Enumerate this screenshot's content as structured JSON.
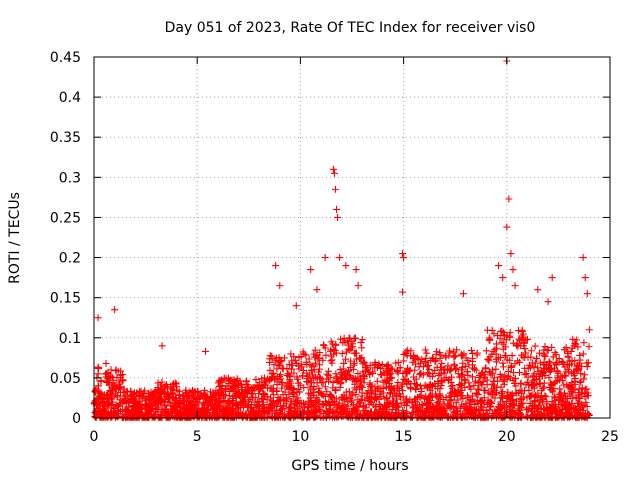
{
  "chart_data": {
    "type": "scatter",
    "title": "Day 051 of 2023, Rate Of TEC Index for receiver vis0",
    "xlabel": "GPS time / hours",
    "ylabel": "ROTI / TECUs",
    "xlim": [
      0,
      25
    ],
    "ylim": [
      0,
      0.45
    ],
    "xticks": [
      0,
      5,
      10,
      15,
      20,
      25
    ],
    "yticks": [
      0,
      0.05,
      0.1,
      0.15,
      0.2,
      0.25,
      0.3,
      0.35,
      0.4,
      0.45
    ],
    "xtick_labels": [
      "0",
      "5",
      "10",
      "15",
      "20",
      "25"
    ],
    "ytick_labels": [
      "0",
      "0.05",
      "0.1",
      "0.15",
      "0.2",
      "0.25",
      "0.3",
      "0.35",
      "0.4",
      "0.45"
    ],
    "grid": true,
    "marker": "+",
    "color": "#ff0000",
    "x_extent_of_data": [
      0,
      24
    ],
    "notable_points": [
      {
        "x": 0.2,
        "y": 0.125
      },
      {
        "x": 1.0,
        "y": 0.135
      },
      {
        "x": 3.3,
        "y": 0.09
      },
      {
        "x": 5.4,
        "y": 0.083
      },
      {
        "x": 8.8,
        "y": 0.19
      },
      {
        "x": 9.0,
        "y": 0.165
      },
      {
        "x": 9.8,
        "y": 0.14
      },
      {
        "x": 10.5,
        "y": 0.185
      },
      {
        "x": 10.8,
        "y": 0.16
      },
      {
        "x": 11.2,
        "y": 0.2
      },
      {
        "x": 11.6,
        "y": 0.31
      },
      {
        "x": 11.65,
        "y": 0.305
      },
      {
        "x": 11.7,
        "y": 0.285
      },
      {
        "x": 11.75,
        "y": 0.26
      },
      {
        "x": 11.8,
        "y": 0.25
      },
      {
        "x": 11.9,
        "y": 0.2
      },
      {
        "x": 12.2,
        "y": 0.19
      },
      {
        "x": 12.7,
        "y": 0.185
      },
      {
        "x": 12.8,
        "y": 0.165
      },
      {
        "x": 14.95,
        "y": 0.205
      },
      {
        "x": 15.0,
        "y": 0.2
      },
      {
        "x": 14.95,
        "y": 0.157
      },
      {
        "x": 17.9,
        "y": 0.155
      },
      {
        "x": 19.6,
        "y": 0.19
      },
      {
        "x": 19.8,
        "y": 0.175
      },
      {
        "x": 20.0,
        "y": 0.445
      },
      {
        "x": 20.1,
        "y": 0.273
      },
      {
        "x": 20.0,
        "y": 0.238
      },
      {
        "x": 20.2,
        "y": 0.205
      },
      {
        "x": 20.3,
        "y": 0.185
      },
      {
        "x": 20.4,
        "y": 0.165
      },
      {
        "x": 21.5,
        "y": 0.16
      },
      {
        "x": 22.0,
        "y": 0.145
      },
      {
        "x": 22.2,
        "y": 0.175
      },
      {
        "x": 23.7,
        "y": 0.2
      },
      {
        "x": 23.8,
        "y": 0.175
      },
      {
        "x": 23.9,
        "y": 0.155
      },
      {
        "x": 24.0,
        "y": 0.11
      }
    ]
  }
}
